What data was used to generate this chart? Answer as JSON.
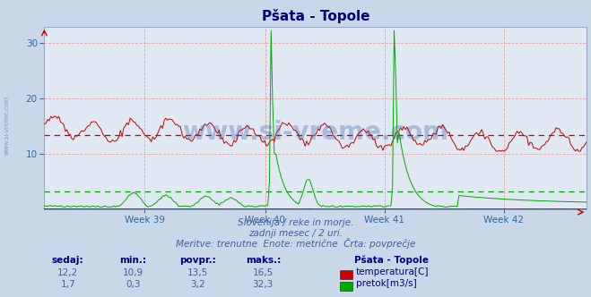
{
  "title": "Pšata - Topole",
  "bg_color": "#c8d8e8",
  "plot_bg_color": "#e0e8f4",
  "grid_color": "#e8a0a0",
  "title_color": "#000080",
  "subtitle_color": "#4060a0",
  "table_header_color": "#000080",
  "table_value_color": "#4060a0",
  "temp_color": "#cc0000",
  "flow_color": "#00aa00",
  "height_color": "#0000cc",
  "temp_avg": 13.5,
  "flow_avg": 3.2,
  "ylim": [
    0,
    33
  ],
  "yticks": [
    10,
    20,
    30
  ],
  "x_ticks_labels": [
    "Week 39",
    "Week 40",
    "Week 41",
    "Week 42"
  ],
  "n_points": 336,
  "subtitle1": "Slovenija / reke in morje.",
  "subtitle2": "zadnji mesec / 2 uri.",
  "subtitle3": "Meritve: trenutne  Enote: metrične  Črta: povprečje",
  "legend_title": "Pšata - Topole",
  "label_temp": "temperatura[C]",
  "label_flow": "pretok[m3/s]",
  "col_headers": [
    "sedaj:",
    "min.:",
    "povpr.:",
    "maks.:"
  ],
  "row1": [
    "12,2",
    "10,9",
    "13,5",
    "16,5"
  ],
  "row2": [
    "1,7",
    "0,3",
    "3,2",
    "32,3"
  ],
  "watermark": "www.si-vreme.com",
  "left_label": "www.si-vreme.com"
}
